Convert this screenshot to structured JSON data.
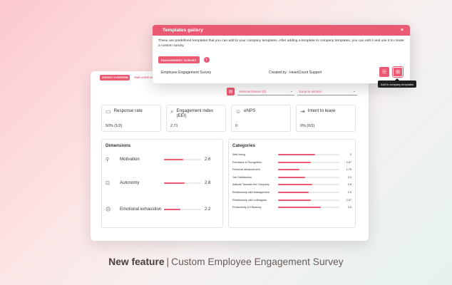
{
  "dashboard": {
    "tabs": [
      "SURVEY OVERVIEW",
      "EMPLOYEE INSIGHTS"
    ],
    "toolbar": {
      "selected_teams": "Selected teams (0)",
      "jump": "Jump to section"
    },
    "cards": [
      {
        "label": "Response rate",
        "value": "50% (1/2)",
        "icon": "chat-icon"
      },
      {
        "label": "Engagement index (EEI)",
        "value": "2.71",
        "icon": "magnify-icon"
      },
      {
        "label": "eNPS",
        "value": "0",
        "icon": "smile-icon"
      },
      {
        "label": "Intent to leave",
        "value": "0% (0/2)",
        "icon": "leave-icon"
      }
    ],
    "dimensions": {
      "title": "Dimensions",
      "items": [
        {
          "label": "Motivation",
          "score": "2.6",
          "fraction": 0.52,
          "icon": "person-icon"
        },
        {
          "label": "Autonomy",
          "score": "2.8",
          "fraction": 0.56,
          "icon": "robot-icon"
        },
        {
          "label": "Emotional exhaustion",
          "score": "2.2",
          "fraction": 0.44,
          "icon": "stress-icon"
        }
      ]
    },
    "categories": {
      "title": "Categories",
      "items": [
        {
          "label": "Well-being",
          "score": "3",
          "fraction": 0.6
        },
        {
          "label": "Feedback & Recognition",
          "score": "2.67",
          "fraction": 0.53
        },
        {
          "label": "Personal advancement",
          "score": "1.75",
          "fraction": 0.35
        },
        {
          "label": "Job Satisfaction",
          "score": "2.2",
          "fraction": 0.44
        },
        {
          "label": "Attitude Towards the Company",
          "score": "2.8",
          "fraction": 0.56
        },
        {
          "label": "Relationship with Management",
          "score": "2.5",
          "fraction": 0.5
        },
        {
          "label": "Relationship with colleagues",
          "score": "2.67",
          "fraction": 0.53
        },
        {
          "label": "Productivity & Efficiency",
          "score": "3.5",
          "fraction": 0.7
        }
      ]
    }
  },
  "modal": {
    "title": "Templates gallery",
    "close": "×",
    "description": "These are predefined templates that you can add to your company templates. After adding a template to company templates, you can edit it and use it to create a custom survey.",
    "badge": "ENGAGEMENT SURVEY",
    "info": "i",
    "template_name": "Employee Engagement Survey",
    "created_by": "Created by : HeartCount Support",
    "tooltip": "Add to company templates"
  },
  "caption": {
    "bold": "New feature",
    "sep": "|",
    "text": "Custom Employee Engagement Survey"
  },
  "colors": {
    "accent": "#ea5b73"
  }
}
